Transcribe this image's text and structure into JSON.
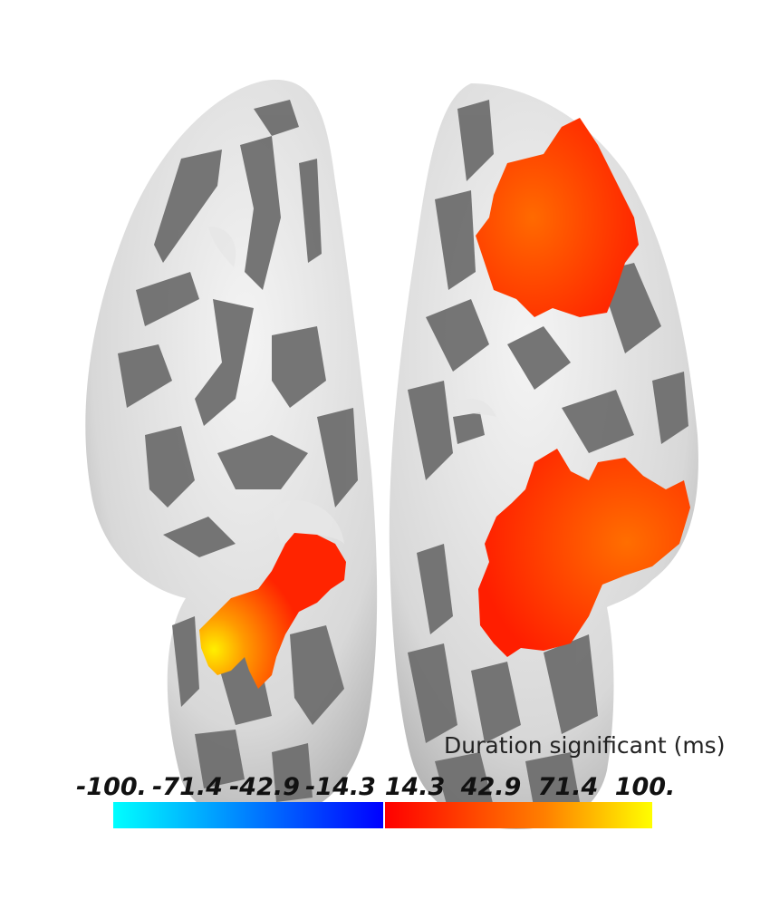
{
  "figure": {
    "views": [
      {
        "name": "left-hemisphere",
        "view": "inflated cortex, ventral"
      },
      {
        "name": "right-hemisphere",
        "view": "inflated cortex, ventral"
      }
    ],
    "colorbar": {
      "title": "Duration significant (ms)",
      "ticks": [
        "-100.",
        "-71.4",
        "-42.9",
        "-14.3",
        "14.3",
        "42.9",
        "71.4",
        "100."
      ],
      "range": [
        -100,
        100
      ],
      "colors": {
        "negative": [
          "#00ffff",
          "#0080ff",
          "#0000ff"
        ],
        "positive": [
          "#ff0000",
          "#ff8000",
          "#ffff00"
        ]
      }
    },
    "colors": {
      "gyri": "#e4e4e4",
      "sulci": "#6f6f6f",
      "activation": "#ff2a00",
      "activation_peak": "#ffe200"
    }
  }
}
